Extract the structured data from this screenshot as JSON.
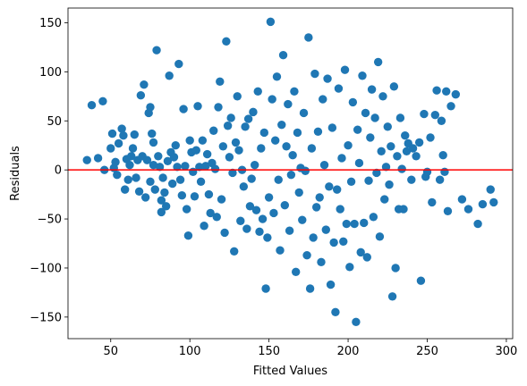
{
  "chart_data": {
    "type": "scatter",
    "xlabel": "Fitted Values",
    "ylabel": "Residuals",
    "xlim": [
      23,
      304
    ],
    "ylim": [
      -172,
      165
    ],
    "xticks": [
      50,
      100,
      150,
      200,
      250,
      300
    ],
    "yticks": [
      -150,
      -100,
      -50,
      0,
      50,
      100,
      150
    ],
    "grid": false,
    "reference_line": {
      "y": 0,
      "color": "#ff0000"
    },
    "point_color": "#1f77b4",
    "series": [
      {
        "values": [
          [
            35,
            10
          ],
          [
            38,
            66
          ],
          [
            42,
            12
          ],
          [
            45,
            70
          ],
          [
            46,
            0
          ],
          [
            50,
            22
          ],
          [
            51,
            37
          ],
          [
            52,
            2
          ],
          [
            53,
            8
          ],
          [
            54,
            -5
          ],
          [
            55,
            27
          ],
          [
            57,
            42
          ],
          [
            58,
            35
          ],
          [
            59,
            -20
          ],
          [
            60,
            11
          ],
          [
            61,
            -10
          ],
          [
            62,
            5
          ],
          [
            63,
            14
          ],
          [
            64,
            22
          ],
          [
            65,
            36
          ],
          [
            66,
            -8
          ],
          [
            67,
            10
          ],
          [
            68,
            -22
          ],
          [
            69,
            76
          ],
          [
            70,
            14
          ],
          [
            71,
            87
          ],
          [
            72,
            -28
          ],
          [
            73,
            10
          ],
          [
            74,
            58
          ],
          [
            75,
            64
          ],
          [
            75,
            -12
          ],
          [
            76,
            37
          ],
          [
            77,
            28
          ],
          [
            77,
            5
          ],
          [
            78,
            -20
          ],
          [
            79,
            122
          ],
          [
            80,
            14
          ],
          [
            81,
            3
          ],
          [
            82,
            -31
          ],
          [
            82,
            -43
          ],
          [
            83,
            -8
          ],
          [
            84,
            -23
          ],
          [
            85,
            -37
          ],
          [
            86,
            9
          ],
          [
            87,
            96
          ],
          [
            88,
            18
          ],
          [
            89,
            -14
          ],
          [
            90,
            13
          ],
          [
            91,
            25
          ],
          [
            92,
            3
          ],
          [
            93,
            108
          ],
          [
            94,
            -10
          ],
          [
            95,
            -26
          ],
          [
            96,
            62
          ],
          [
            97,
            4
          ],
          [
            98,
            -40
          ],
          [
            99,
            -67
          ],
          [
            100,
            30
          ],
          [
            101,
            18
          ],
          [
            102,
            -2
          ],
          [
            103,
            -27
          ],
          [
            104,
            20
          ],
          [
            105,
            65
          ],
          [
            106,
            3
          ],
          [
            107,
            -12
          ],
          [
            108,
            30
          ],
          [
            109,
            -57
          ],
          [
            110,
            4
          ],
          [
            111,
            16
          ],
          [
            112,
            -25
          ],
          [
            113,
            -44
          ],
          [
            114,
            7
          ],
          [
            115,
            40
          ],
          [
            116,
            1
          ],
          [
            117,
            -48
          ],
          [
            118,
            64
          ],
          [
            119,
            90
          ],
          [
            120,
            -30
          ],
          [
            121,
            24
          ],
          [
            122,
            -64
          ],
          [
            123,
            131
          ],
          [
            124,
            45
          ],
          [
            125,
            13
          ],
          [
            126,
            53
          ],
          [
            127,
            -3
          ],
          [
            128,
            -83
          ],
          [
            129,
            28
          ],
          [
            130,
            75
          ],
          [
            131,
            20
          ],
          [
            132,
            -52
          ],
          [
            133,
            0
          ],
          [
            134,
            -17
          ],
          [
            135,
            44
          ],
          [
            136,
            -60
          ],
          [
            137,
            52
          ],
          [
            138,
            -37
          ],
          [
            139,
            -9
          ],
          [
            140,
            59
          ],
          [
            141,
            5
          ],
          [
            142,
            -41
          ],
          [
            143,
            80
          ],
          [
            144,
            -63
          ],
          [
            145,
            22
          ],
          [
            146,
            -50
          ],
          [
            147,
            38
          ],
          [
            148,
            -121
          ],
          [
            149,
            -69
          ],
          [
            150,
            -28
          ],
          [
            151,
            151
          ],
          [
            152,
            72
          ],
          [
            153,
            -44
          ],
          [
            154,
            30
          ],
          [
            155,
            95
          ],
          [
            156,
            -10
          ],
          [
            157,
            -82
          ],
          [
            158,
            46
          ],
          [
            159,
            117
          ],
          [
            160,
            -36
          ],
          [
            161,
            24
          ],
          [
            162,
            67
          ],
          [
            163,
            -62
          ],
          [
            164,
            -5
          ],
          [
            165,
            15
          ],
          [
            166,
            80
          ],
          [
            167,
            -104
          ],
          [
            168,
            38
          ],
          [
            169,
            -23
          ],
          [
            170,
            2
          ],
          [
            171,
            -51
          ],
          [
            172,
            58
          ],
          [
            173,
            -1
          ],
          [
            174,
            -87
          ],
          [
            175,
            135
          ],
          [
            176,
            -121
          ],
          [
            177,
            22
          ],
          [
            178,
            -69
          ],
          [
            179,
            98
          ],
          [
            180,
            -38
          ],
          [
            181,
            39
          ],
          [
            182,
            -28
          ],
          [
            183,
            -94
          ],
          [
            184,
            72
          ],
          [
            185,
            5
          ],
          [
            186,
            -61
          ],
          [
            187,
            93
          ],
          [
            188,
            -17
          ],
          [
            189,
            -117
          ],
          [
            190,
            43
          ],
          [
            191,
            -74
          ],
          [
            192,
            -145
          ],
          [
            193,
            -20
          ],
          [
            194,
            83
          ],
          [
            195,
            -40
          ],
          [
            196,
            12
          ],
          [
            197,
            -73
          ],
          [
            198,
            102
          ],
          [
            199,
            -55
          ],
          [
            200,
            25
          ],
          [
            201,
            -99
          ],
          [
            202,
            -12
          ],
          [
            203,
            69
          ],
          [
            204,
            -55
          ],
          [
            205,
            -155
          ],
          [
            206,
            41
          ],
          [
            207,
            7
          ],
          [
            208,
            -84
          ],
          [
            209,
            96
          ],
          [
            210,
            -54
          ],
          [
            211,
            58
          ],
          [
            212,
            -89
          ],
          [
            213,
            -11
          ],
          [
            214,
            33
          ],
          [
            215,
            82
          ],
          [
            216,
            -48
          ],
          [
            217,
            53
          ],
          [
            218,
            -3
          ],
          [
            219,
            110
          ],
          [
            220,
            -68
          ],
          [
            221,
            19
          ],
          [
            222,
            75
          ],
          [
            223,
            -30
          ],
          [
            224,
            3
          ],
          [
            225,
            44
          ],
          [
            226,
            -15
          ],
          [
            227,
            24
          ],
          [
            228,
            -129
          ],
          [
            229,
            85
          ],
          [
            230,
            -100
          ],
          [
            231,
            14
          ],
          [
            232,
            -40
          ],
          [
            233,
            53
          ],
          [
            234,
            1
          ],
          [
            235,
            -40
          ],
          [
            236,
            35
          ],
          [
            237,
            19
          ],
          [
            238,
            27
          ],
          [
            240,
            -10
          ],
          [
            241,
            22
          ],
          [
            243,
            14
          ],
          [
            245,
            28
          ],
          [
            246,
            -113
          ],
          [
            248,
            57
          ],
          [
            249,
            -7
          ],
          [
            250,
            -2
          ],
          [
            252,
            33
          ],
          [
            253,
            -33
          ],
          [
            255,
            56
          ],
          [
            256,
            81
          ],
          [
            258,
            -10
          ],
          [
            259,
            50
          ],
          [
            260,
            15
          ],
          [
            261,
            -2
          ],
          [
            262,
            80
          ],
          [
            263,
            -42
          ],
          [
            265,
            65
          ],
          [
            268,
            77
          ],
          [
            272,
            -30
          ],
          [
            276,
            -40
          ],
          [
            282,
            -55
          ],
          [
            285,
            -35
          ],
          [
            290,
            -20
          ],
          [
            292,
            -33
          ]
        ]
      }
    ]
  }
}
